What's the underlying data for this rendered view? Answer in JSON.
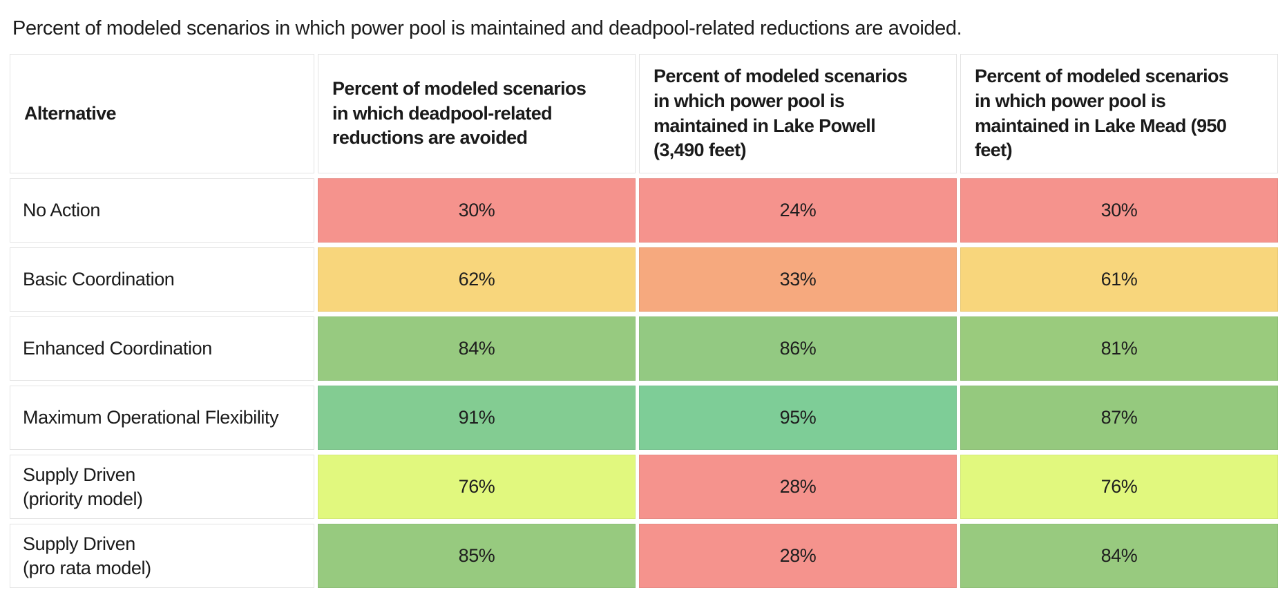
{
  "caption": "Percent of modeled scenarios in which power pool is maintained and deadpool-related reductions are avoided.",
  "chart_data": {
    "type": "table",
    "title": "Percent of modeled scenarios in which power pool is maintained and deadpool-related reductions are avoided.",
    "value_unit": "percent",
    "color_scale": {
      "low_color": "#f5938d",
      "mid_color": "#f8d67c",
      "high_color": "#7ecd97",
      "description": "red-yellow-green scale; low percents red, high percents green"
    },
    "columns": [
      {
        "label": "Alternative",
        "clipped": false
      },
      {
        "label": "Percent of modeled scenarios\nin which deadpool-related\nreductions are avoided",
        "clipped": false
      },
      {
        "label": "Percent of modeled scenarios\nin which power pool is\nmaintained in Lake Powell\n(3,490 feet)",
        "clipped": false
      },
      {
        "label": "Percent of modeled scenarios\nin which power pool is\nmaintained in Lake Mead (950\nfeet)",
        "clipped": true
      }
    ],
    "rows": [
      {
        "label": "No Action",
        "cells": [
          {
            "value": "30%",
            "number": 30,
            "color": "#f5938d"
          },
          {
            "value": "24%",
            "number": 24,
            "color": "#f5938d"
          },
          {
            "value": "30%",
            "number": 30,
            "color": "#f5938d"
          }
        ]
      },
      {
        "label": "Basic Coordination",
        "cells": [
          {
            "value": "62%",
            "number": 62,
            "color": "#f8d67c"
          },
          {
            "value": "33%",
            "number": 33,
            "color": "#f6a97e"
          },
          {
            "value": "61%",
            "number": 61,
            "color": "#f8d67c"
          }
        ]
      },
      {
        "label": "Enhanced Coordination",
        "cells": [
          {
            "value": "84%",
            "number": 84,
            "color": "#97ca80"
          },
          {
            "value": "86%",
            "number": 86,
            "color": "#93c982"
          },
          {
            "value": "81%",
            "number": 81,
            "color": "#9acb7d"
          }
        ]
      },
      {
        "label": "Maximum Operational Flexibility",
        "cells": [
          {
            "value": "91%",
            "number": 91,
            "color": "#83cc92"
          },
          {
            "value": "95%",
            "number": 95,
            "color": "#7ecd97"
          },
          {
            "value": "87%",
            "number": 87,
            "color": "#95c97e"
          }
        ]
      },
      {
        "label": "Supply Driven\n(priority model)",
        "cells": [
          {
            "value": "76%",
            "number": 76,
            "color": "#e1f87e"
          },
          {
            "value": "28%",
            "number": 28,
            "color": "#f5938d"
          },
          {
            "value": "76%",
            "number": 76,
            "color": "#e1f87e"
          }
        ]
      },
      {
        "label": "Supply Driven\n(pro rata model)",
        "cells": [
          {
            "value": "85%",
            "number": 85,
            "color": "#97ca7f"
          },
          {
            "value": "28%",
            "number": 28,
            "color": "#f5938d"
          },
          {
            "value": "84%",
            "number": 84,
            "color": "#98ca7f"
          }
        ]
      }
    ]
  }
}
